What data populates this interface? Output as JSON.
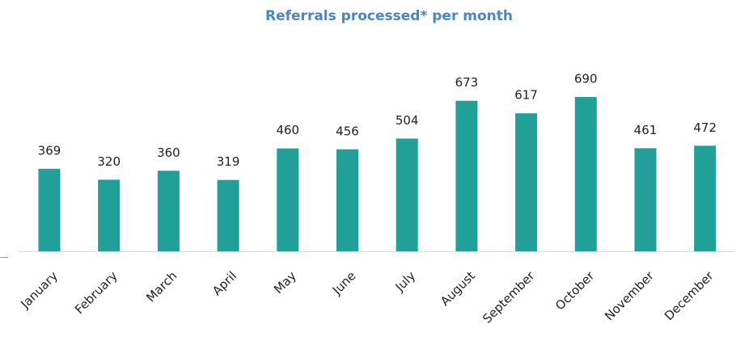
{
  "chart_data": {
    "type": "bar",
    "title": "Referrals processed* per month",
    "categories": [
      "January",
      "February",
      "March",
      "April",
      "May",
      "June",
      "July",
      "August",
      "September",
      "October",
      "November",
      "December"
    ],
    "values": [
      369,
      320,
      360,
      319,
      460,
      456,
      504,
      673,
      617,
      690,
      461,
      472
    ],
    "color": "#20a098"
  }
}
